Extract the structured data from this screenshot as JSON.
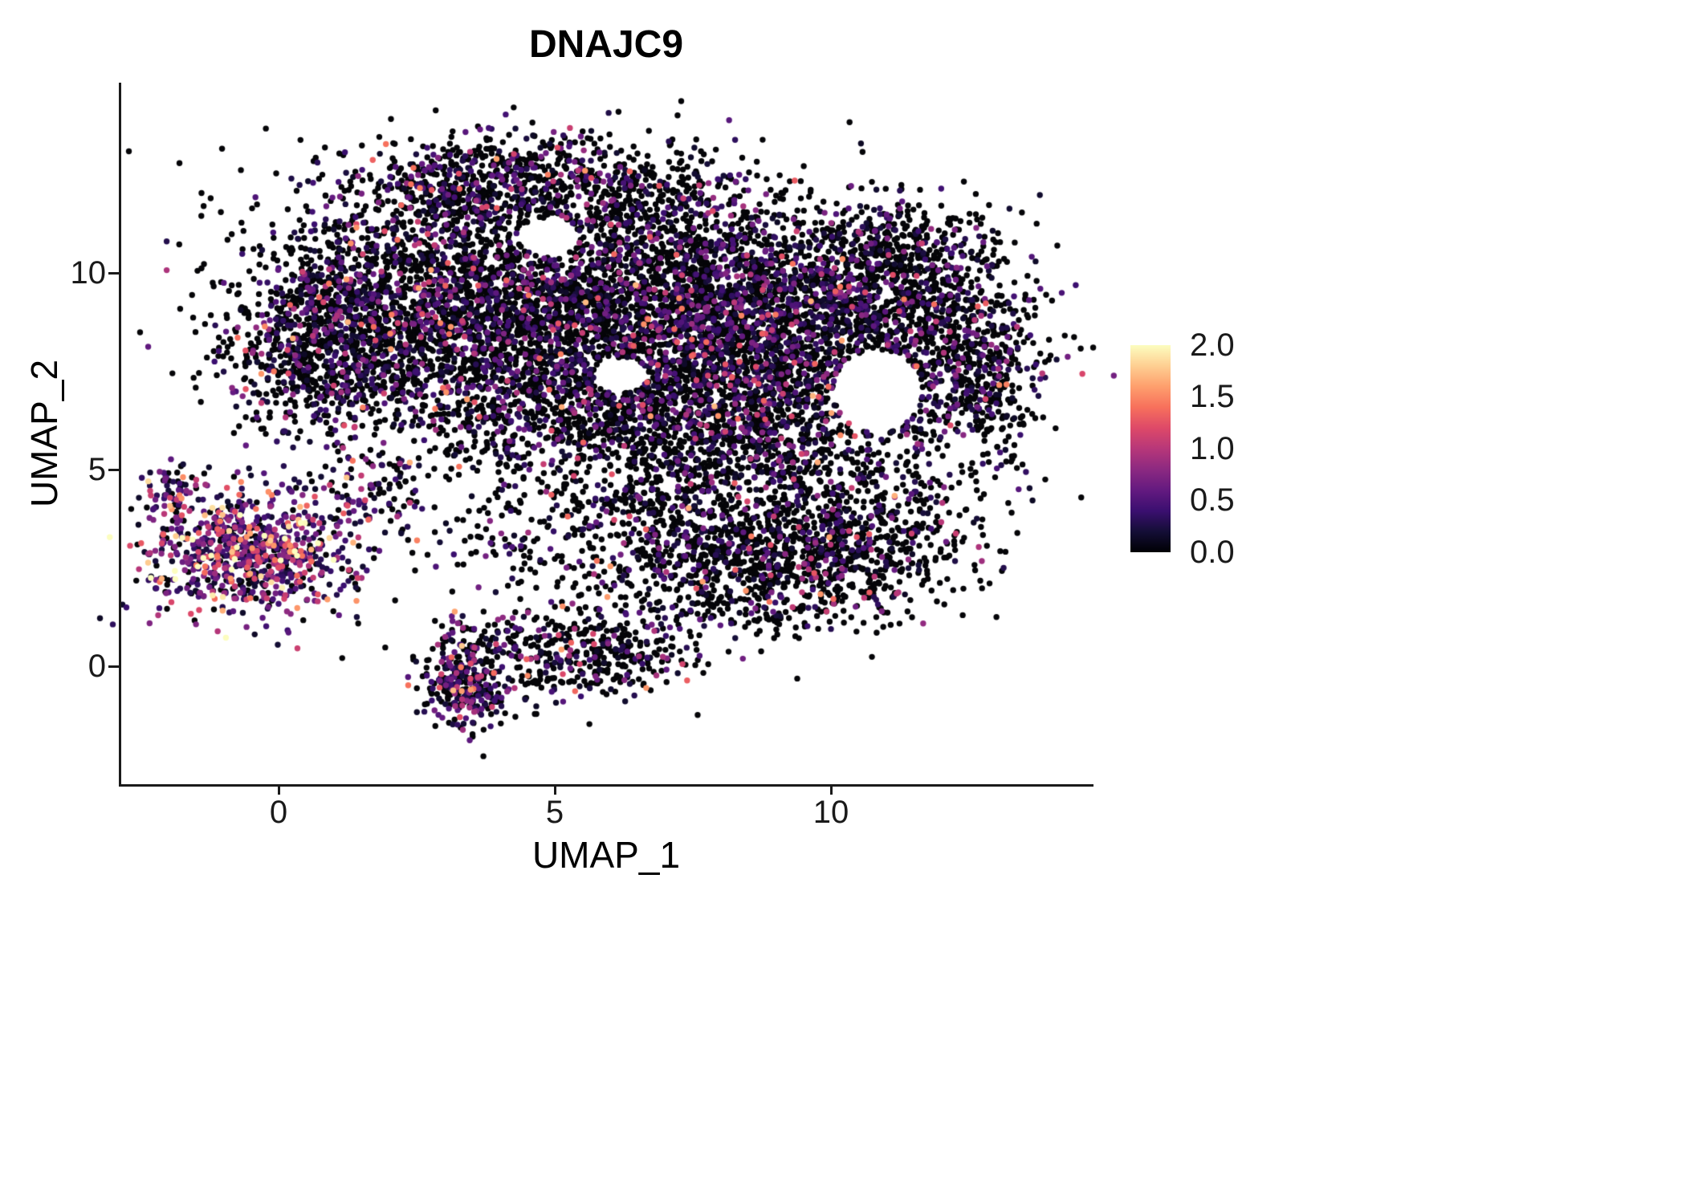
{
  "chart_data": {
    "type": "scatter",
    "title": "DNAJC9",
    "xlabel": "UMAP_1",
    "ylabel": "UMAP_2",
    "xlim": [
      -2.8,
      14.8
    ],
    "ylim": [
      -3.0,
      14.3
    ],
    "x_ticks": [
      0,
      5,
      10
    ],
    "y_ticks": [
      0,
      5,
      10
    ],
    "x_tick_labels": [
      "0",
      "5",
      "10"
    ],
    "y_tick_labels": [
      "0",
      "5",
      "10"
    ],
    "grid": false,
    "legend_position": "right",
    "colorbar": {
      "min": 0,
      "max": 2,
      "tick_values": [
        2.0,
        1.5,
        1.0,
        0.5,
        0.0
      ],
      "tick_labels": [
        "2.0",
        "1.5",
        "1.0",
        "0.5",
        "0.0"
      ]
    },
    "colormap": [
      [
        0.0,
        "#000004"
      ],
      [
        0.1,
        "#140e36"
      ],
      [
        0.2,
        "#3b0f70"
      ],
      [
        0.3,
        "#641a80"
      ],
      [
        0.4,
        "#8c2981"
      ],
      [
        0.5,
        "#b73779"
      ],
      [
        0.6,
        "#de4968"
      ],
      [
        0.7,
        "#f7705c"
      ],
      [
        0.8,
        "#fe9f6d"
      ],
      [
        0.9,
        "#fecf92"
      ],
      [
        1.0,
        "#fcfdbf"
      ]
    ],
    "point_radius_px": 3.7,
    "seed": 42,
    "clusters": [
      {
        "cx": 2.1,
        "cy": 9.4,
        "sx": 1.5,
        "sy": 1.4,
        "n": 1300,
        "rate": 0.32,
        "scale": 1.0
      },
      {
        "cx": 0.9,
        "cy": 7.9,
        "sx": 0.9,
        "sy": 1.1,
        "n": 700,
        "rate": 0.35,
        "scale": 1.0
      },
      {
        "cx": 4.3,
        "cy": 8.6,
        "sx": 1.5,
        "sy": 1.5,
        "n": 1200,
        "rate": 0.3,
        "scale": 1.0
      },
      {
        "cx": 6.4,
        "cy": 9.2,
        "sx": 1.5,
        "sy": 1.4,
        "n": 1300,
        "rate": 0.3,
        "scale": 1.0
      },
      {
        "cx": 8.3,
        "cy": 8.3,
        "sx": 1.4,
        "sy": 1.4,
        "n": 1500,
        "rate": 0.38,
        "scale": 1.0
      },
      {
        "cx": 10.2,
        "cy": 9.4,
        "sx": 1.3,
        "sy": 1.1,
        "n": 900,
        "rate": 0.3,
        "scale": 0.9
      },
      {
        "cx": 11.9,
        "cy": 8.1,
        "sx": 0.95,
        "sy": 1.5,
        "n": 750,
        "rate": 0.28,
        "scale": 0.9
      },
      {
        "cx": 5.4,
        "cy": 6.4,
        "sx": 1.7,
        "sy": 0.95,
        "n": 650,
        "rate": 0.3,
        "scale": 1.0
      },
      {
        "cx": 8.5,
        "cy": 6.0,
        "sx": 1.5,
        "sy": 0.9,
        "n": 650,
        "rate": 0.28,
        "scale": 1.0
      },
      {
        "cx": 4.7,
        "cy": 12.5,
        "sx": 1.6,
        "sy": 0.6,
        "n": 500,
        "rate": 0.3,
        "scale": 1.0
      },
      {
        "cx": 3.2,
        "cy": 11.9,
        "sx": 0.8,
        "sy": 0.6,
        "n": 220,
        "rate": 0.35,
        "scale": 1.0
      },
      {
        "cx": 6.7,
        "cy": 11.5,
        "sx": 1.3,
        "sy": 0.8,
        "n": 350,
        "rate": 0.25,
        "scale": 0.9
      },
      {
        "cx": 11.3,
        "cy": 10.7,
        "sx": 0.8,
        "sy": 0.55,
        "n": 200,
        "rate": 0.25,
        "scale": 0.9
      },
      {
        "cx": 12.8,
        "cy": 7.1,
        "sx": 0.5,
        "sy": 1.0,
        "n": 200,
        "rate": 0.25,
        "scale": 0.9
      },
      {
        "cx": -0.55,
        "cy": 2.95,
        "sx": 0.9,
        "sy": 0.8,
        "n": 850,
        "rate": 0.8,
        "scale": 1.5
      },
      {
        "cx": -1.85,
        "cy": 4.35,
        "sx": 0.25,
        "sy": 0.35,
        "n": 70,
        "rate": 0.7,
        "scale": 1.5
      },
      {
        "cx": 1.8,
        "cy": 4.4,
        "sx": 0.55,
        "sy": 0.5,
        "n": 90,
        "rate": 0.5,
        "scale": 1.2
      },
      {
        "cx": 4.8,
        "cy": 0.3,
        "sx": 1.2,
        "sy": 0.65,
        "n": 380,
        "rate": 0.35,
        "scale": 1.1
      },
      {
        "cx": 3.35,
        "cy": -0.5,
        "sx": 0.35,
        "sy": 0.6,
        "n": 260,
        "rate": 0.55,
        "scale": 1.2
      },
      {
        "cx": 6.2,
        "cy": 0.4,
        "sx": 0.6,
        "sy": 0.45,
        "n": 120,
        "rate": 0.3,
        "scale": 1.0
      },
      {
        "cx": 5.9,
        "cy": 3.4,
        "sx": 1.9,
        "sy": 0.85,
        "n": 380,
        "rate": 0.3,
        "scale": 1.1
      },
      {
        "cx": 8.8,
        "cy": 2.5,
        "sx": 1.5,
        "sy": 0.8,
        "n": 850,
        "rate": 0.22,
        "scale": 1.0
      },
      {
        "cx": 10.4,
        "cy": 3.6,
        "sx": 1.1,
        "sy": 0.95,
        "n": 500,
        "rate": 0.25,
        "scale": 1.0
      },
      {
        "cx": 7.4,
        "cy": 4.6,
        "sx": 1.0,
        "sy": 0.6,
        "n": 200,
        "rate": 0.28,
        "scale": 1.0
      }
    ],
    "holes": [
      {
        "cx": 10.85,
        "cy": 7.0,
        "rx": 0.8,
        "ry": 1.05
      },
      {
        "cx": 4.9,
        "cy": 10.9,
        "rx": 0.55,
        "ry": 0.5
      },
      {
        "cx": 6.2,
        "cy": 7.4,
        "rx": 0.5,
        "ry": 0.45
      }
    ]
  }
}
